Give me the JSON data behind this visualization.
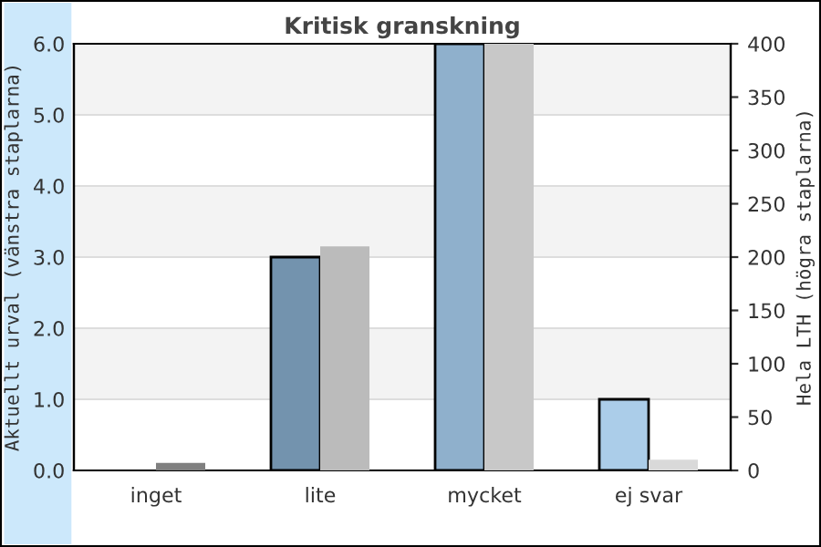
{
  "chart_data": {
    "type": "bar",
    "title": "Kritisk granskning",
    "categories": [
      "inget",
      "lite",
      "mycket",
      "ej svar"
    ],
    "ylabel": "Aktuellt urval (vänstra staplarna)",
    "y2label": "Hela LTH (högra staplarna)",
    "series": [
      {
        "values": [
          0,
          3,
          6,
          1
        ],
        "colors": [
          "#5f7f9c",
          "#7393ae",
          "#8fb0cc",
          "#abcde9"
        ]
      },
      {
        "values": [
          7,
          210,
          400,
          10
        ],
        "colors": [
          "#808080",
          "#bbbbbb",
          "#c8c8c8",
          "#d9d9d9"
        ],
        "axis": "y2"
      }
    ],
    "ylim": [
      0,
      6
    ],
    "yticks": [
      {
        "value": 0,
        "label": "0.0"
      },
      {
        "value": 1,
        "label": "1.0"
      },
      {
        "value": 2,
        "label": "2.0"
      },
      {
        "value": 3,
        "label": "3.0"
      },
      {
        "value": 4,
        "label": "4.0"
      },
      {
        "value": 5,
        "label": "5.0"
      },
      {
        "value": 6,
        "label": "6.0"
      }
    ],
    "y2lim": [
      0,
      400
    ],
    "y2ticks": [
      0,
      50,
      100,
      150,
      200,
      250,
      300,
      350,
      400
    ],
    "bands": [
      {
        "axis": "y",
        "from": 1,
        "to": 2,
        "color": "#f3f3f3"
      },
      {
        "axis": "y",
        "from": 3,
        "to": 4,
        "color": "#f3f3f3"
      },
      {
        "axis": "y",
        "from": 5,
        "to": 6,
        "color": "#f3f3f3"
      }
    ],
    "grid": "y",
    "legend": false
  }
}
